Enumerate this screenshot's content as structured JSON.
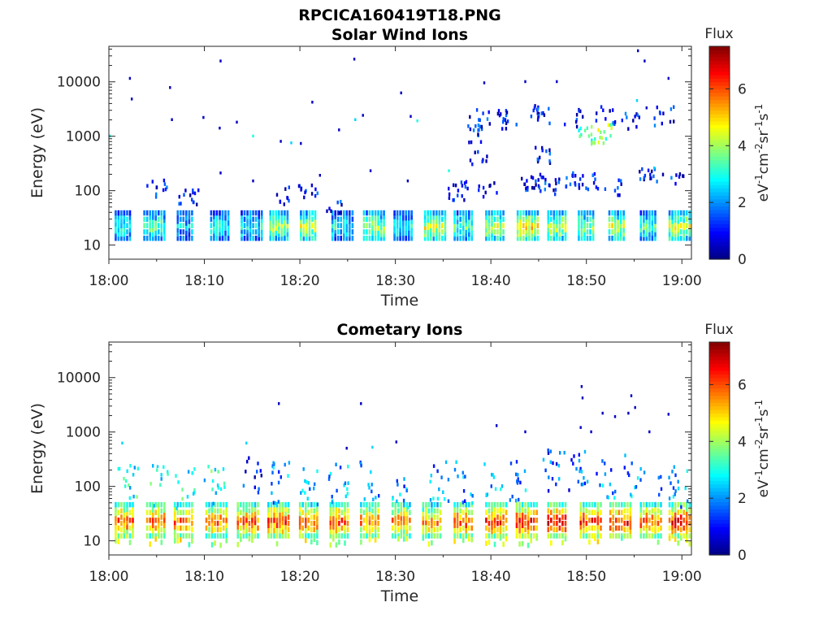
{
  "figure": {
    "title": "RPCICA160419T18.PNG"
  },
  "chart_data": [
    {
      "type": "heatmap",
      "id": "solar",
      "title": "Solar Wind Ions",
      "xlabel": "Time",
      "ylabel": "Energy (eV)",
      "x_ticks": [
        "18:00",
        "18:10",
        "18:20",
        "18:30",
        "18:40",
        "18:50",
        "19:00"
      ],
      "x_range_minutes": [
        0,
        61
      ],
      "y_scale": "log",
      "y_ticks": [
        "10",
        "100",
        "1000",
        "10000"
      ],
      "y_range": [
        5.5,
        45000
      ],
      "colorbar": {
        "title": "Flux",
        "label": "eV-1cm-2sr-1s-1",
        "ticks": [
          "0",
          "2",
          "4",
          "6"
        ],
        "range": [
          0,
          7.5
        ]
      },
      "bands": [
        {
          "t": 1.5,
          "v": 3
        },
        {
          "t": 4.5,
          "v": 3.5
        },
        {
          "t": 8.0,
          "v": 2.5
        },
        {
          "t": 11.5,
          "v": 3
        },
        {
          "t": 14.7,
          "v": 3
        },
        {
          "t": 17.7,
          "v": 4
        },
        {
          "t": 20.9,
          "v": 4.5
        },
        {
          "t": 24.2,
          "v": 3
        },
        {
          "t": 27.5,
          "v": 4
        },
        {
          "t": 30.7,
          "v": 3
        },
        {
          "t": 33.9,
          "v": 4.5
        },
        {
          "t": 37.0,
          "v": 3.5
        },
        {
          "t": 40.3,
          "v": 4.5
        },
        {
          "t": 43.6,
          "v": 5
        },
        {
          "t": 46.8,
          "v": 4.5
        },
        {
          "t": 50.0,
          "v": 4
        },
        {
          "t": 53.2,
          "v": 4.5
        },
        {
          "t": 56.5,
          "v": 3.5
        },
        {
          "t": 59.5,
          "v": 4.5
        }
      ],
      "spots": [
        {
          "t": 0,
          "e": 1000,
          "v": 3
        },
        {
          "t": 2.1,
          "e": 11500,
          "v": 0.5
        },
        {
          "t": 2.3,
          "e": 4800,
          "v": 0.5
        },
        {
          "t": 6.3,
          "e": 7800,
          "v": 0.5
        },
        {
          "t": 6.5,
          "e": 2000,
          "v": 0.5
        },
        {
          "t": 9.8,
          "e": 2200,
          "v": 0.5
        },
        {
          "t": 11.6,
          "e": 24000,
          "v": 0.5
        },
        {
          "t": 11.5,
          "e": 1400,
          "v": 0.5
        },
        {
          "t": 13.3,
          "e": 1800,
          "v": 0.5
        },
        {
          "t": 15.0,
          "e": 1000,
          "v": 3
        },
        {
          "t": 17.9,
          "e": 800,
          "v": 0.5
        },
        {
          "t": 19.0,
          "e": 750,
          "v": 2.5
        },
        {
          "t": 20.0,
          "e": 730,
          "v": 0.5
        },
        {
          "t": 21.2,
          "e": 4200,
          "v": 0.5
        },
        {
          "t": 25.6,
          "e": 26000,
          "v": 0.5
        },
        {
          "t": 25.7,
          "e": 2000,
          "v": 2.5
        },
        {
          "t": 24.0,
          "e": 1300,
          "v": 0.5
        },
        {
          "t": 26.5,
          "e": 2400,
          "v": 0.5
        },
        {
          "t": 27.3,
          "e": 230,
          "v": 0.5
        },
        {
          "t": 30.5,
          "e": 6200,
          "v": 0.5
        },
        {
          "t": 31.5,
          "e": 2300,
          "v": 0.5
        },
        {
          "t": 32.2,
          "e": 1900,
          "v": 3
        },
        {
          "t": 35.5,
          "e": 230,
          "v": 3
        },
        {
          "t": 39.2,
          "e": 9500,
          "v": 0.5
        },
        {
          "t": 43.5,
          "e": 10000,
          "v": 0.5
        },
        {
          "t": 46.8,
          "e": 10000,
          "v": 0.5
        },
        {
          "t": 55.3,
          "e": 37000,
          "v": 0.5
        },
        {
          "t": 56.0,
          "e": 24000,
          "v": 0.5
        },
        {
          "t": 58.5,
          "e": 11500,
          "v": 0.5
        },
        {
          "t": 55.2,
          "e": 4500,
          "v": 2.5
        },
        {
          "t": 56.2,
          "e": 3300,
          "v": 0.5
        },
        {
          "t": 11.6,
          "e": 210,
          "v": 0.5
        },
        {
          "t": 15.0,
          "e": 150,
          "v": 0.5
        },
        {
          "t": 22.0,
          "e": 190,
          "v": 0.5
        },
        {
          "t": 31.2,
          "e": 150,
          "v": 0.5
        },
        {
          "t": 57.0,
          "e": 260,
          "v": 2.5
        }
      ],
      "clusters": [
        {
          "t": 38.8,
          "e": 2000,
          "v": 1
        },
        {
          "t": 38.5,
          "e": 1000,
          "v": 1
        },
        {
          "t": 41.5,
          "e": 1800,
          "v": 1
        },
        {
          "t": 45.0,
          "e": 2200,
          "v": 1
        },
        {
          "t": 48.7,
          "e": 2000,
          "v": 1
        },
        {
          "t": 50.0,
          "e": 900,
          "v": 3
        },
        {
          "t": 51.5,
          "e": 1000,
          "v": 4
        },
        {
          "t": 52.0,
          "e": 2200,
          "v": 1
        },
        {
          "t": 54.5,
          "e": 1600,
          "v": 1
        },
        {
          "t": 58.0,
          "e": 2100,
          "v": 1
        },
        {
          "t": 38.8,
          "e": 400,
          "v": 1
        },
        {
          "t": 45.5,
          "e": 420,
          "v": 1
        },
        {
          "t": 44.2,
          "e": 120,
          "v": 1
        },
        {
          "t": 46.0,
          "e": 110,
          "v": 1
        },
        {
          "t": 48.5,
          "e": 130,
          "v": 1
        },
        {
          "t": 50.3,
          "e": 130,
          "v": 1
        },
        {
          "t": 52.5,
          "e": 100,
          "v": 1
        },
        {
          "t": 56.5,
          "e": 150,
          "v": 1
        },
        {
          "t": 59.0,
          "e": 130,
          "v": 1
        },
        {
          "t": 39.5,
          "e": 90,
          "v": 1
        },
        {
          "t": 36.5,
          "e": 90,
          "v": 1
        },
        {
          "t": 5.0,
          "e": 100,
          "v": 1
        },
        {
          "t": 8.2,
          "e": 65,
          "v": 1
        },
        {
          "t": 17.8,
          "e": 75,
          "v": 1
        },
        {
          "t": 20.7,
          "e": 80,
          "v": 1
        },
        {
          "t": 23.5,
          "e": 50,
          "v": 1
        }
      ]
    },
    {
      "type": "heatmap",
      "id": "comet",
      "title": "Cometary Ions",
      "xlabel": "Time",
      "ylabel": "Energy (eV)",
      "x_ticks": [
        "18:00",
        "18:10",
        "18:20",
        "18:30",
        "18:40",
        "18:50",
        "19:00"
      ],
      "x_range_minutes": [
        0,
        61
      ],
      "y_scale": "log",
      "y_ticks": [
        "10",
        "100",
        "1000",
        "10000"
      ],
      "y_range": [
        5.5,
        45000
      ],
      "colorbar": {
        "title": "Flux",
        "label": "eV-1cm-2sr-1s-1",
        "ticks": [
          "0",
          "2",
          "4",
          "6"
        ],
        "range": [
          0,
          7.5
        ]
      },
      "bands": [
        {
          "t": 1.5,
          "v": 6.2
        },
        {
          "t": 4.8,
          "v": 6.0
        },
        {
          "t": 7.7,
          "v": 6.0
        },
        {
          "t": 11.0,
          "v": 5.8
        },
        {
          "t": 14.3,
          "v": 6.0
        },
        {
          "t": 17.5,
          "v": 6.2
        },
        {
          "t": 20.8,
          "v": 6.0
        },
        {
          "t": 24.0,
          "v": 6.2
        },
        {
          "t": 27.2,
          "v": 5.8
        },
        {
          "t": 30.5,
          "v": 5.8
        },
        {
          "t": 33.7,
          "v": 5.6
        },
        {
          "t": 37.0,
          "v": 6.2
        },
        {
          "t": 40.3,
          "v": 6.4
        },
        {
          "t": 43.5,
          "v": 6.6
        },
        {
          "t": 46.8,
          "v": 6.8
        },
        {
          "t": 50.2,
          "v": 6.6
        },
        {
          "t": 53.3,
          "v": 6.6
        },
        {
          "t": 56.5,
          "v": 6.2
        },
        {
          "t": 59.5,
          "v": 6.6
        }
      ],
      "spots": [
        {
          "t": 1.3,
          "e": 620,
          "v": 2.5
        },
        {
          "t": 5.0,
          "e": 230,
          "v": 2.5
        },
        {
          "t": 14.3,
          "e": 620,
          "v": 2.5
        },
        {
          "t": 17.7,
          "e": 3300,
          "v": 0.5
        },
        {
          "t": 26.3,
          "e": 3300,
          "v": 0.5
        },
        {
          "t": 24.8,
          "e": 500,
          "v": 0.5
        },
        {
          "t": 27.5,
          "e": 520,
          "v": 2.5
        },
        {
          "t": 30.0,
          "e": 650,
          "v": 0.5
        },
        {
          "t": 40.5,
          "e": 1300,
          "v": 0.5
        },
        {
          "t": 43.5,
          "e": 1000,
          "v": 0.5
        },
        {
          "t": 49.4,
          "e": 6800,
          "v": 0.5
        },
        {
          "t": 49.5,
          "e": 4200,
          "v": 0.5
        },
        {
          "t": 51.6,
          "e": 2200,
          "v": 0.5
        },
        {
          "t": 52.9,
          "e": 1900,
          "v": 0.5
        },
        {
          "t": 54.6,
          "e": 4600,
          "v": 0.5
        },
        {
          "t": 55.0,
          "e": 2800,
          "v": 0.5
        },
        {
          "t": 54.3,
          "e": 2200,
          "v": 0.5
        },
        {
          "t": 58.5,
          "e": 2100,
          "v": 0.5
        },
        {
          "t": 50.4,
          "e": 1000,
          "v": 0.5
        },
        {
          "t": 49.3,
          "e": 1200,
          "v": 0.5
        },
        {
          "t": 56.5,
          "e": 1000,
          "v": 0.5
        }
      ],
      "clusters": [
        {
          "t": 2.0,
          "e": 90,
          "v": 3
        },
        {
          "t": 5.2,
          "e": 80,
          "v": 3
        },
        {
          "t": 7.8,
          "e": 75,
          "v": 3
        },
        {
          "t": 11.0,
          "e": 75,
          "v": 3
        },
        {
          "t": 15.0,
          "e": 110,
          "v": 1
        },
        {
          "t": 18.0,
          "e": 90,
          "v": 2
        },
        {
          "t": 21.0,
          "e": 85,
          "v": 2
        },
        {
          "t": 24.0,
          "e": 90,
          "v": 2
        },
        {
          "t": 27.2,
          "e": 110,
          "v": 2
        },
        {
          "t": 30.5,
          "e": 80,
          "v": 2
        },
        {
          "t": 34.5,
          "e": 90,
          "v": 2
        },
        {
          "t": 37.0,
          "e": 100,
          "v": 2
        },
        {
          "t": 40.0,
          "e": 100,
          "v": 2
        },
        {
          "t": 43.0,
          "e": 110,
          "v": 2
        },
        {
          "t": 46.5,
          "e": 150,
          "v": 1.5
        },
        {
          "t": 49.0,
          "e": 140,
          "v": 1.5
        },
        {
          "t": 52.0,
          "e": 110,
          "v": 2
        },
        {
          "t": 55.0,
          "e": 120,
          "v": 2
        },
        {
          "t": 58.5,
          "e": 120,
          "v": 2
        },
        {
          "t": 60.0,
          "e": 80,
          "v": 2
        }
      ]
    }
  ]
}
